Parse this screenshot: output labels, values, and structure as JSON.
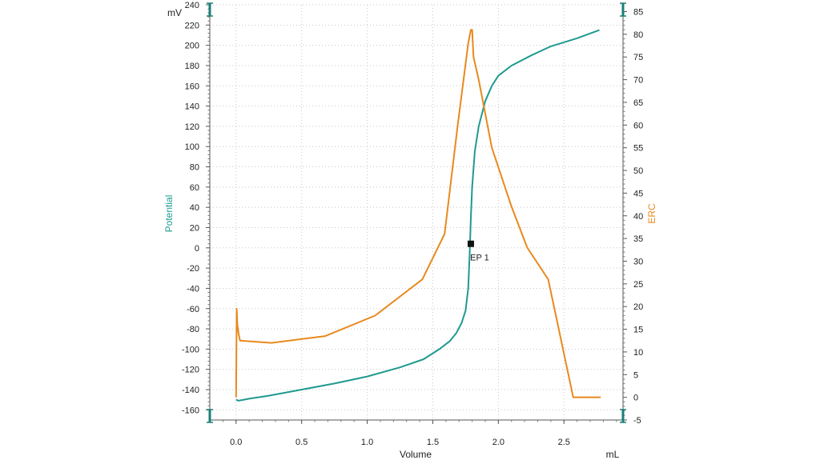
{
  "chart_data": {
    "type": "line",
    "xlabel": "Volume",
    "x_unit": "mL",
    "xlim": [
      -0.2,
      2.95
    ],
    "x_ticks": [
      "0.0",
      "0.5",
      "1.0",
      "1.5",
      "2.0",
      "2.5"
    ],
    "y_left": {
      "label": "Potential",
      "unit": "mV",
      "lim": [
        -170,
        240
      ],
      "ticks": [
        "240",
        "220",
        "200",
        "180",
        "160",
        "140",
        "120",
        "100",
        "80",
        "60",
        "40",
        "20",
        "0",
        "-20",
        "-40",
        "-60",
        "-80",
        "-100",
        "-120",
        "-140",
        "-160"
      ]
    },
    "y_right": {
      "label": "ERC",
      "lim": [
        -5,
        86.5
      ],
      "ticks": [
        "85",
        "80",
        "75",
        "70",
        "65",
        "60",
        "55",
        "50",
        "45",
        "40",
        "35",
        "30",
        "25",
        "20",
        "15",
        "10",
        "5",
        "0",
        "-5"
      ]
    },
    "grid": true,
    "colors": {
      "potential": "#1f9a8f",
      "erc": "#e8891d",
      "marker": "#111111",
      "axis": "#1b7f76"
    },
    "series": [
      {
        "name": "Potential",
        "axis": "left",
        "x": [
          0.0,
          0.02,
          0.1,
          0.25,
          0.5,
          0.75,
          1.0,
          1.25,
          1.43,
          1.55,
          1.63,
          1.68,
          1.72,
          1.75,
          1.77,
          1.78,
          1.785,
          1.79,
          1.8,
          1.82,
          1.85,
          1.9,
          1.95,
          2.0,
          2.1,
          2.25,
          2.4,
          2.6,
          2.77
        ],
        "y": [
          -150,
          -151,
          -149,
          -146,
          -140,
          -134,
          -127,
          -118,
          -110,
          -100,
          -92,
          -84,
          -74,
          -62,
          -40,
          -10,
          10,
          30,
          60,
          95,
          120,
          145,
          160,
          170,
          180,
          190,
          199,
          207,
          215
        ]
      },
      {
        "name": "ERC",
        "axis": "right",
        "x": [
          0.0,
          0.005,
          0.01,
          0.02,
          0.03,
          0.27,
          0.68,
          1.06,
          1.42,
          1.59,
          1.69,
          1.77,
          1.79,
          1.8,
          1.81,
          1.85,
          1.95,
          2.1,
          2.22,
          2.38,
          2.57,
          2.78
        ],
        "y": [
          0,
          19.5,
          16,
          14,
          12.5,
          12,
          13.5,
          18,
          26,
          36,
          60,
          78,
          81,
          81,
          75,
          70,
          55,
          42,
          33,
          26,
          0,
          0
        ]
      }
    ],
    "annotations": [
      {
        "label": "EP 1",
        "x": 1.79,
        "y": 4
      }
    ]
  }
}
